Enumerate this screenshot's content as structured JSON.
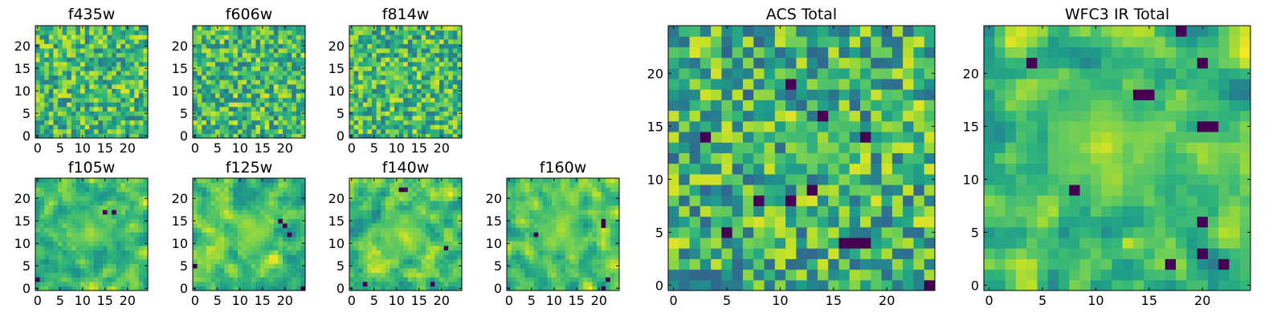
{
  "colormap": {
    "name": "viridis",
    "stops": [
      "#440154",
      "#482878",
      "#3e4989",
      "#31688e",
      "#26828e",
      "#1f9e89",
      "#35b779",
      "#6ece58",
      "#b5de2b",
      "#fde725"
    ]
  },
  "chart_data": [
    {
      "type": "heatmap",
      "title": "f435w",
      "seed": 11,
      "smooth": 0,
      "size": 25,
      "clip": [
        0.4,
        0.95
      ],
      "xticks": [
        0,
        5,
        10,
        15,
        20
      ],
      "yticks": [
        0,
        5,
        10,
        15,
        20
      ],
      "hotspots": [],
      "coldspots": []
    },
    {
      "type": "heatmap",
      "title": "f606w",
      "seed": 23,
      "smooth": 0,
      "size": 25,
      "clip": [
        0.4,
        0.95
      ],
      "xticks": [
        0,
        5,
        10,
        15,
        20
      ],
      "yticks": [
        0,
        5,
        10,
        15,
        20
      ],
      "hotspots": [],
      "coldspots": []
    },
    {
      "type": "heatmap",
      "title": "f814w",
      "seed": 37,
      "smooth": 0,
      "size": 25,
      "clip": [
        0.4,
        0.95
      ],
      "xticks": [
        0,
        5,
        10,
        15,
        20
      ],
      "yticks": [
        0,
        5,
        10,
        15,
        20
      ],
      "hotspots": [
        [
          10,
          13,
          3
        ]
      ],
      "coldspots": []
    },
    {
      "type": "heatmap",
      "title": "f105w",
      "seed": 41,
      "smooth": 1,
      "size": 25,
      "clip": [
        0.42,
        0.98
      ],
      "xticks": [
        0,
        5,
        10,
        15,
        20
      ],
      "yticks": [
        0,
        5,
        10,
        15,
        20
      ],
      "hotspots": [
        [
          12,
          13,
          5
        ]
      ],
      "coldspots": [
        [
          15,
          17
        ],
        [
          17,
          17
        ]
      ]
    },
    {
      "type": "heatmap",
      "title": "f125w",
      "seed": 53,
      "smooth": 1,
      "size": 25,
      "clip": [
        0.42,
        0.98
      ],
      "xticks": [
        0,
        5,
        10,
        15,
        20
      ],
      "yticks": [
        0,
        5,
        10,
        15,
        20
      ],
      "hotspots": [
        [
          13,
          12,
          5
        ]
      ],
      "coldspots": [
        [
          19,
          15
        ],
        [
          20,
          14
        ],
        [
          21,
          12
        ],
        [
          0,
          5
        ]
      ]
    },
    {
      "type": "heatmap",
      "title": "f140w",
      "seed": 67,
      "smooth": 1,
      "size": 25,
      "clip": [
        0.42,
        0.98
      ],
      "xticks": [
        0,
        5,
        10,
        15,
        20
      ],
      "yticks": [
        0,
        5,
        10,
        15,
        20
      ],
      "hotspots": [
        [
          11,
          12,
          6
        ]
      ],
      "coldspots": [
        [
          11,
          22
        ],
        [
          12,
          22
        ],
        [
          3,
          1
        ],
        [
          21,
          9
        ]
      ]
    },
    {
      "type": "heatmap",
      "title": "f160w",
      "seed": 79,
      "smooth": 1,
      "size": 25,
      "clip": [
        0.42,
        0.98
      ],
      "xticks": [
        0,
        5,
        10,
        15,
        20
      ],
      "yticks": [
        0,
        5,
        10,
        15,
        20
      ],
      "hotspots": [
        [
          11,
          13,
          6
        ]
      ],
      "coldspots": [
        [
          21,
          15
        ],
        [
          21,
          14
        ],
        [
          22,
          2
        ],
        [
          6,
          12
        ]
      ]
    },
    {
      "type": "heatmap",
      "title": "ACS Total",
      "seed": 97,
      "smooth": 0,
      "size": 25,
      "clip": [
        0.32,
        0.95
      ],
      "xticks": [
        0,
        5,
        10,
        15,
        20
      ],
      "yticks": [
        0,
        5,
        10,
        15,
        20
      ],
      "hotspots": [
        [
          14,
          13,
          3
        ]
      ],
      "coldspots": [
        [
          11,
          19
        ],
        [
          18,
          14
        ],
        [
          5,
          5
        ],
        [
          3,
          14
        ],
        [
          14,
          16
        ],
        [
          16,
          4
        ],
        [
          17,
          4
        ],
        [
          18,
          4
        ],
        [
          24,
          0
        ],
        [
          8,
          8
        ],
        [
          11,
          8
        ],
        [
          13,
          9
        ]
      ]
    },
    {
      "type": "heatmap",
      "title": "WFC3 IR Total",
      "seed": 113,
      "smooth": 1,
      "size": 25,
      "clip": [
        0.4,
        0.99
      ],
      "xticks": [
        0,
        5,
        10,
        15,
        20
      ],
      "yticks": [
        0,
        5,
        10,
        15,
        20
      ],
      "hotspots": [
        [
          11,
          13,
          6
        ]
      ],
      "coldspots": [
        [
          14,
          18
        ],
        [
          15,
          18
        ],
        [
          20,
          15
        ],
        [
          21,
          15
        ],
        [
          20,
          21
        ],
        [
          8,
          9
        ],
        [
          22,
          2
        ],
        [
          20,
          6
        ],
        [
          20,
          3
        ],
        [
          4,
          21
        ],
        [
          17,
          2
        ]
      ]
    }
  ]
}
